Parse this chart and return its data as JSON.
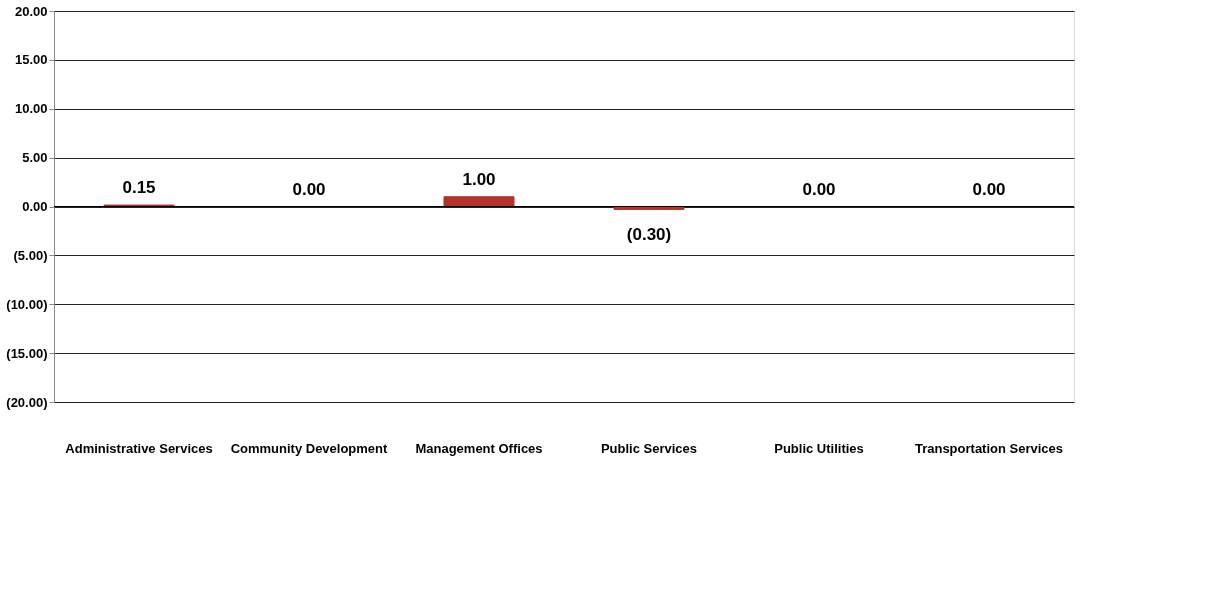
{
  "chart_data": {
    "type": "bar",
    "categories": [
      "Administrative Services",
      "Community Development",
      "Management Offices",
      "Public Services",
      "Public Utilities",
      "Transportation Services"
    ],
    "values": [
      0.15,
      0.0,
      1.0,
      -0.3,
      0.0,
      0.0
    ],
    "value_labels": [
      "0.15",
      "0.00",
      "1.00",
      "(0.30)",
      "0.00",
      "0.00"
    ],
    "color": "#b5332a",
    "ylim": [
      -20,
      20
    ],
    "yticks": [
      {
        "value": -20,
        "label": "(20.00)"
      },
      {
        "value": -15,
        "label": "(15.00)"
      },
      {
        "value": -10,
        "label": "(10.00)"
      },
      {
        "value": -5,
        "label": "(5.00)"
      },
      {
        "value": 0,
        "label": "0.00"
      },
      {
        "value": 5,
        "label": "5.00"
      },
      {
        "value": 10,
        "label": "10.00"
      },
      {
        "value": 15,
        "label": "15.00"
      },
      {
        "value": 20,
        "label": "20.00"
      }
    ],
    "grid": "y"
  }
}
